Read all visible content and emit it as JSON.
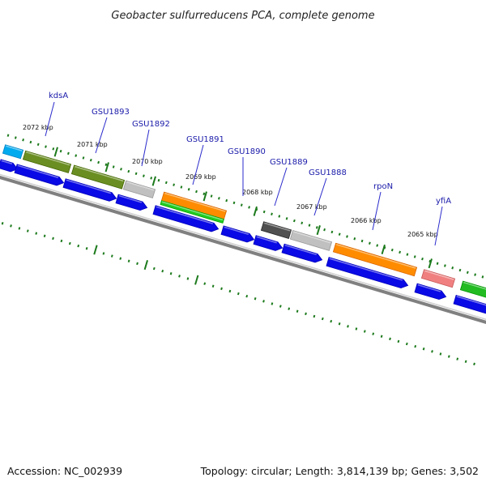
{
  "title": "Geobacter sulfurreducens PCA, complete genome",
  "footer": {
    "accession": "Accession: NC_002939",
    "summary": "Topology: circular; Length: 3,814,139 bp; Genes: 3,502"
  },
  "colors": {
    "backbone": "#808080",
    "cds": "#0a0ae6",
    "tick": "#1c7a1c",
    "label": "#1a1aaa",
    "callout": "#2a2acc"
  },
  "scale_ticks": [
    "2072 kbp",
    "2071 kbp",
    "2070 kbp",
    "2069 kbp",
    "2068 kbp",
    "2067 kbp",
    "2066 kbp",
    "2065 kbp"
  ],
  "gene_labels": [
    "kdsA",
    "GSU1893",
    "GSU1892",
    "GSU1891",
    "GSU1890",
    "GSU1889",
    "GSU1888",
    "rpoN",
    "yfiA"
  ],
  "feature_colors": {
    "outer_ring": [
      "#00aaee",
      "#6b8e23",
      "#6b8e23",
      "#c0c0c0",
      "#ff8c00",
      "#505050",
      "#c0c0c0",
      "#ff8c00",
      "#f08080",
      "#22bb22"
    ],
    "second_ring": [
      "#22cc22"
    ]
  }
}
